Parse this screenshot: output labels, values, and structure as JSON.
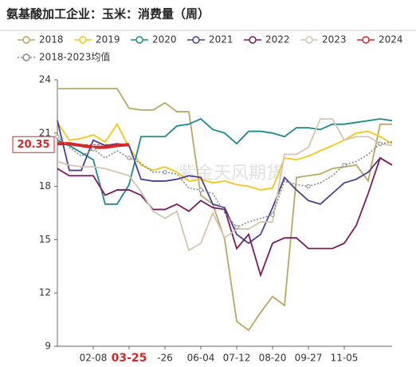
{
  "chart_data": {
    "type": "line",
    "title": "氨基酸加工企业：玉米：消费量（周）",
    "watermark": "紫金天风期货",
    "categories": [
      null,
      null,
      null,
      "02-08",
      null,
      null,
      "03-25",
      null,
      null,
      "-26",
      null,
      null,
      "06-04",
      null,
      null,
      "07-12",
      null,
      null,
      "08-20",
      null,
      null,
      "09-27",
      null,
      null,
      "11-05",
      null,
      null,
      null,
      null
    ],
    "ylim": [
      9,
      24
    ],
    "yticks": [
      9,
      12,
      15,
      18,
      21,
      24
    ],
    "highlight": {
      "category": 6,
      "value": 20.35,
      "color": "#d62728"
    },
    "series": [
      {
        "name": "2018",
        "color": "#b8a862",
        "values": [
          23.5,
          23.5,
          23.5,
          23.5,
          23.5,
          23.5,
          22.4,
          22.3,
          22.3,
          22.7,
          22.2,
          22.2,
          17.5,
          17.0,
          15.0,
          10.4,
          9.9,
          10.9,
          11.8,
          11.3,
          18.5,
          18.6,
          18.7,
          19.0,
          19.1,
          19.2,
          18.3,
          21.5,
          21.5
        ]
      },
      {
        "name": "2019",
        "color": "#f5c518",
        "values": [
          21.6,
          20.6,
          20.7,
          20.9,
          20.5,
          21.5,
          20.2,
          19.2,
          18.9,
          19.1,
          18.8,
          18.3,
          18.4,
          18.2,
          18.3,
          18.1,
          18.0,
          17.8,
          17.9,
          19.6,
          19.5,
          19.7,
          20.0,
          20.3,
          20.6,
          21.0,
          21.1,
          20.8,
          20.4
        ]
      },
      {
        "name": "2020",
        "color": "#1a8a8a",
        "values": [
          20.6,
          20.3,
          19.9,
          19.5,
          17.0,
          17.0,
          18.1,
          20.8,
          20.8,
          20.8,
          21.4,
          21.5,
          21.8,
          21.2,
          21.0,
          20.4,
          21.1,
          21.1,
          21.0,
          20.8,
          21.3,
          21.3,
          21.2,
          21.5,
          21.5,
          21.6,
          21.7,
          21.8,
          21.7
        ]
      },
      {
        "name": "2021",
        "color": "#4b3f8f",
        "values": [
          21.7,
          18.9,
          18.9,
          20.6,
          20.3,
          20.4,
          20.3,
          18.4,
          18.3,
          18.3,
          18.4,
          18.6,
          18.5,
          17.0,
          16.8,
          15.3,
          14.8,
          15.3,
          16.8,
          18.5,
          17.8,
          17.2,
          17.0,
          17.6,
          18.2,
          18.4,
          18.8,
          19.6,
          19.2
        ]
      },
      {
        "name": "2022",
        "color": "#7b1a5a",
        "values": [
          19.0,
          18.6,
          18.6,
          18.6,
          17.5,
          17.8,
          17.8,
          17.5,
          16.7,
          16.7,
          17.0,
          16.6,
          17.2,
          16.8,
          16.7,
          14.5,
          15.3,
          13.0,
          14.8,
          15.1,
          15.1,
          14.5,
          14.5,
          14.5,
          14.8,
          15.8,
          17.6,
          19.6,
          19.2
        ]
      },
      {
        "name": "2023",
        "color": "#d4c4b0",
        "values": [
          19.4,
          19.2,
          19.1,
          19.1,
          19.0,
          18.8,
          18.6,
          17.7,
          16.6,
          16.2,
          16.6,
          14.4,
          14.8,
          16.5,
          15.1,
          15.6,
          15.6,
          16.0,
          16.0,
          19.8,
          19.8,
          20.2,
          21.8,
          21.8,
          20.6,
          20.8,
          20.8,
          20.4,
          20.3
        ]
      },
      {
        "name": "2024",
        "color": "#d62728",
        "values": [
          20.4,
          20.4,
          20.3,
          20.2,
          20.2,
          20.3,
          20.35,
          null,
          null,
          null,
          null,
          null,
          null,
          null,
          null,
          null,
          null,
          null,
          null,
          null,
          null,
          null,
          null,
          null,
          null,
          null,
          null,
          null,
          null
        ]
      },
      {
        "name": "2018-2023均值",
        "color": "#888888",
        "dashed": true,
        "values": [
          20.8,
          20.2,
          19.7,
          20.1,
          19.6,
          20.0,
          19.6,
          19.3,
          18.8,
          18.8,
          18.7,
          17.9,
          17.8,
          17.6,
          16.5,
          15.7,
          16.0,
          16.2,
          16.4,
          18.3,
          18.1,
          18.0,
          18.2,
          18.6,
          19.2,
          19.4,
          19.8,
          20.4,
          20.5
        ]
      }
    ]
  }
}
